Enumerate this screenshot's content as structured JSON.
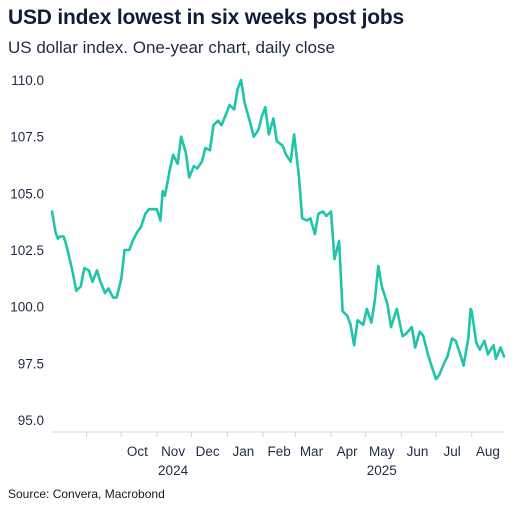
{
  "title": "USD index lowest in six weeks post jobs",
  "subtitle": "US dollar index. One-year chart, daily close",
  "source": "Source: Convera, Macrobond",
  "chart_data": {
    "type": "line",
    "line_color": "#1ec5a8",
    "grid": false,
    "ylim": [
      95,
      110
    ],
    "yticks": [
      95.0,
      97.5,
      100.0,
      102.5,
      105.0,
      107.5,
      110.0
    ],
    "ytick_labels": [
      "95.0",
      "97.5",
      "100.0",
      "102.5",
      "105.0",
      "107.5",
      "110.0"
    ],
    "x_month_labels": [
      "Oct",
      "Nov",
      "Dec",
      "Jan",
      "Feb",
      "Mar",
      "Apr",
      "May",
      "Jun",
      "Jul",
      "Aug"
    ],
    "x_year_labels": [
      {
        "label": "2024",
        "month_index": 1
      },
      {
        "label": "2025",
        "month_index": 7
      }
    ],
    "series": [
      {
        "x": [
          "2024-08-02",
          "2024-08-05",
          "2024-08-07",
          "2024-08-09",
          "2024-08-12",
          "2024-08-14",
          "2024-08-16",
          "2024-08-20",
          "2024-08-23",
          "2024-08-27",
          "2024-08-30",
          "2024-09-03",
          "2024-09-06",
          "2024-09-10",
          "2024-09-13",
          "2024-09-17",
          "2024-09-20",
          "2024-09-24",
          "2024-09-27",
          "2024-10-01",
          "2024-10-04",
          "2024-10-08",
          "2024-10-11",
          "2024-10-15",
          "2024-10-18",
          "2024-10-22",
          "2024-10-25",
          "2024-10-29",
          "2024-11-01",
          "2024-11-04",
          "2024-11-06",
          "2024-11-08",
          "2024-11-12",
          "2024-11-15",
          "2024-11-19",
          "2024-11-22",
          "2024-11-26",
          "2024-11-29",
          "2024-12-03",
          "2024-12-06",
          "2024-12-10",
          "2024-12-13",
          "2024-12-17",
          "2024-12-20",
          "2024-12-24",
          "2024-12-27",
          "2024-12-31",
          "2025-01-03",
          "2025-01-07",
          "2025-01-10",
          "2025-01-13",
          "2025-01-16",
          "2025-01-21",
          "2025-01-24",
          "2025-01-28",
          "2025-01-31",
          "2025-02-03",
          "2025-02-06",
          "2025-02-10",
          "2025-02-13",
          "2025-02-18",
          "2025-02-21",
          "2025-02-25",
          "2025-02-28",
          "2025-03-04",
          "2025-03-07",
          "2025-03-11",
          "2025-03-14",
          "2025-03-18",
          "2025-03-21",
          "2025-03-25",
          "2025-03-28",
          "2025-04-01",
          "2025-04-04",
          "2025-04-08",
          "2025-04-11",
          "2025-04-15",
          "2025-04-18",
          "2025-04-21",
          "2025-04-24",
          "2025-04-29",
          "2025-05-02",
          "2025-05-06",
          "2025-05-09",
          "2025-05-12",
          "2025-05-15",
          "2025-05-20",
          "2025-05-23",
          "2025-05-28",
          "2025-06-02",
          "2025-06-05",
          "2025-06-10",
          "2025-06-13",
          "2025-06-17",
          "2025-06-20",
          "2025-06-24",
          "2025-06-27",
          "2025-07-01",
          "2025-07-04",
          "2025-07-08",
          "2025-07-11",
          "2025-07-15",
          "2025-07-18",
          "2025-07-22",
          "2025-07-25",
          "2025-07-29",
          "2025-07-31",
          "2025-08-01",
          "2025-08-05",
          "2025-08-08",
          "2025-08-12",
          "2025-08-15",
          "2025-08-20",
          "2025-08-22",
          "2025-08-26",
          "2025-08-29"
        ],
        "values": [
          104.2,
          103.3,
          103.0,
          103.1,
          103.1,
          102.8,
          102.4,
          101.5,
          100.7,
          100.9,
          101.7,
          101.6,
          101.1,
          101.6,
          101.1,
          100.6,
          100.8,
          100.4,
          100.4,
          101.2,
          102.5,
          102.5,
          102.9,
          103.3,
          103.5,
          104.1,
          104.3,
          104.3,
          104.3,
          103.8,
          105.1,
          104.9,
          106.0,
          106.7,
          106.3,
          107.5,
          106.8,
          105.7,
          106.2,
          106.1,
          106.4,
          107.0,
          106.9,
          108.0,
          108.2,
          108.0,
          108.5,
          108.9,
          108.7,
          109.6,
          110.0,
          109.0,
          108.1,
          107.5,
          107.8,
          108.4,
          108.8,
          107.6,
          108.3,
          107.3,
          107.1,
          106.7,
          106.4,
          107.6,
          105.8,
          103.9,
          103.8,
          103.9,
          103.2,
          104.1,
          104.2,
          104.0,
          104.2,
          102.1,
          102.9,
          99.8,
          99.6,
          99.2,
          98.3,
          99.4,
          99.2,
          99.9,
          99.3,
          100.3,
          101.8,
          100.9,
          100.1,
          99.1,
          99.9,
          98.7,
          98.8,
          99.1,
          98.2,
          98.9,
          98.7,
          97.9,
          97.4,
          96.8,
          97.0,
          97.5,
          97.8,
          98.6,
          98.5,
          97.9,
          97.4,
          98.6,
          99.9,
          99.8,
          98.4,
          98.1,
          98.5,
          97.9,
          98.3,
          97.7,
          98.2,
          97.8
        ]
      }
    ]
  }
}
